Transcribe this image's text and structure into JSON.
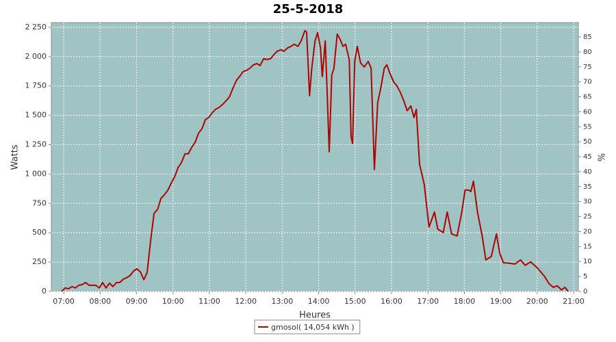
{
  "chart_data": {
    "type": "line",
    "title": "25-5-2018",
    "x_label": "Heures",
    "y_label": "Watts",
    "y2_label": "%",
    "background": "#a0c4c4",
    "grid": true,
    "legend": "bottom",
    "xlim": [
      6.66,
      21.13
    ],
    "xticks": [
      {
        "value": 7,
        "label": "07:00"
      },
      {
        "value": 8,
        "label": "08:00"
      },
      {
        "value": 9,
        "label": "09:00"
      },
      {
        "value": 10,
        "label": "10:00"
      },
      {
        "value": 11,
        "label": "11:00"
      },
      {
        "value": 12,
        "label": "12:00"
      },
      {
        "value": 13,
        "label": "13:00"
      },
      {
        "value": 14,
        "label": "14:00"
      },
      {
        "value": 15,
        "label": "15:00"
      },
      {
        "value": 16,
        "label": "16:00"
      },
      {
        "value": 17,
        "label": "17:00"
      },
      {
        "value": 18,
        "label": "18:00"
      },
      {
        "value": 19,
        "label": "19:00"
      },
      {
        "value": 20,
        "label": "20:00"
      },
      {
        "value": 21,
        "label": "21:00"
      }
    ],
    "ylim": [
      0,
      2290
    ],
    "yticks": [
      0,
      250,
      500,
      750,
      {
        "value": 1000,
        "label": "1 000"
      },
      {
        "value": 1250,
        "label": "1 250"
      },
      {
        "value": 1500,
        "label": "1 500"
      },
      {
        "value": 1750,
        "label": "1 750"
      },
      {
        "value": 2000,
        "label": "2 000"
      },
      {
        "value": 2250,
        "label": "2 250"
      }
    ],
    "y2lim": [
      0,
      89.8
    ],
    "y2ticks": [
      0,
      5,
      10,
      15,
      20,
      25,
      30,
      35,
      40,
      45,
      50,
      55,
      60,
      65,
      70,
      75,
      80,
      85
    ],
    "x": [
      6.94,
      7.04,
      7.13,
      7.23,
      7.32,
      7.41,
      7.51,
      7.6,
      7.7,
      7.88,
      7.98,
      8.07,
      8.16,
      8.26,
      8.35,
      8.45,
      8.54,
      8.64,
      8.73,
      8.82,
      8.92,
      9.01,
      9.11,
      9.2,
      9.29,
      9.39,
      9.48,
      9.58,
      9.67,
      9.76,
      9.86,
      9.95,
      10.05,
      10.14,
      10.23,
      10.33,
      10.42,
      10.52,
      10.61,
      10.7,
      10.8,
      10.89,
      10.98,
      11.08,
      11.17,
      11.27,
      11.36,
      11.45,
      11.55,
      11.64,
      11.74,
      11.83,
      11.92,
      12.02,
      12.11,
      12.21,
      12.3,
      12.39,
      12.49,
      12.58,
      12.68,
      12.77,
      12.86,
      12.96,
      13.05,
      13.15,
      13.24,
      13.33,
      13.43,
      13.52,
      13.62,
      13.67,
      13.75,
      13.81,
      13.9,
      13.97,
      14.05,
      14.1,
      14.18,
      14.23,
      14.29,
      14.36,
      14.42,
      14.51,
      14.59,
      14.67,
      14.74,
      14.84,
      14.89,
      14.93,
      14.99,
      15.06,
      15.15,
      15.25,
      15.36,
      15.44,
      15.53,
      15.62,
      15.7,
      15.8,
      15.87,
      15.96,
      16.06,
      16.15,
      16.24,
      16.34,
      16.43,
      16.53,
      16.62,
      16.68,
      16.77,
      16.9,
      17.03,
      17.18,
      17.27,
      17.42,
      17.53,
      17.65,
      17.8,
      17.93,
      18.02,
      18.12,
      18.18,
      18.25,
      18.36,
      18.49,
      18.59,
      18.74,
      18.88,
      18.97,
      19.07,
      19.26,
      19.39,
      19.54,
      19.67,
      19.82,
      20.01,
      20.2,
      20.33,
      20.44,
      20.55,
      20.67,
      20.76,
      20.85
    ],
    "series": [
      {
        "name": "gmosol( 14,054 kWh )",
        "color": "#b00000",
        "values": [
          0,
          29,
          23,
          41,
          29,
          52,
          58,
          76,
          52,
          52,
          29,
          76,
          29,
          70,
          41,
          76,
          76,
          105,
          117,
          134,
          175,
          192,
          163,
          99,
          163,
          443,
          665,
          700,
          793,
          822,
          863,
          921,
          979,
          1055,
          1096,
          1172,
          1172,
          1230,
          1271,
          1347,
          1388,
          1463,
          1481,
          1522,
          1551,
          1568,
          1592,
          1621,
          1656,
          1726,
          1796,
          1831,
          1871,
          1883,
          1901,
          1930,
          1941,
          1924,
          1982,
          1976,
          1982,
          2017,
          2046,
          2058,
          2046,
          2075,
          2087,
          2105,
          2087,
          2134,
          2221,
          2209,
          1667,
          1901,
          2134,
          2204,
          2075,
          1831,
          2134,
          1726,
          1189,
          1842,
          1901,
          2192,
          2146,
          2087,
          2105,
          1971,
          1318,
          1259,
          1959,
          2087,
          1947,
          1912,
          1959,
          1901,
          1038,
          1609,
          1726,
          1901,
          1930,
          1854,
          1784,
          1749,
          1697,
          1621,
          1539,
          1580,
          1481,
          1551,
          1084,
          909,
          548,
          676,
          531,
          501,
          676,
          490,
          472,
          676,
          863,
          863,
          851,
          939,
          676,
          472,
          268,
          297,
          490,
          326,
          245,
          239,
          233,
          268,
          222,
          251,
          198,
          128,
          64,
          35,
          47,
          12,
          35,
          0
        ]
      }
    ]
  }
}
